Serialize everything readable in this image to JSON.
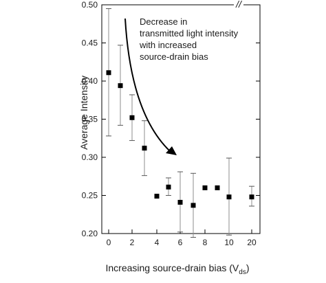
{
  "chart_data": {
    "type": "scatter",
    "xlabel_main": "Increasing source-drain bias (V",
    "xlabel_sub": "ds",
    "xlabel_close": ")",
    "ylabel": "Average Intensity",
    "ylim": [
      0.2,
      0.5
    ],
    "yticks": [
      "0.20",
      "0.25",
      "0.30",
      "0.35",
      "0.40",
      "0.45",
      "0.50"
    ],
    "xticks": [
      "0",
      "2",
      "4",
      "6",
      "8",
      "10",
      "20"
    ],
    "axis_break": "//",
    "grid": false,
    "annotation": {
      "lines": [
        "Decrease in",
        "transmitted light intensity",
        "with increased",
        "source-drain bias"
      ]
    },
    "points": [
      {
        "x": 0,
        "y": 0.411,
        "err_low": 0.328,
        "err_high": 0.495
      },
      {
        "x": 1,
        "y": 0.394,
        "err_low": 0.342,
        "err_high": 0.447
      },
      {
        "x": 2,
        "y": 0.352,
        "err_low": 0.322,
        "err_high": 0.382
      },
      {
        "x": 3,
        "y": 0.312,
        "err_low": 0.276,
        "err_high": 0.348
      },
      {
        "x": 4,
        "y": 0.249,
        "err_low": null,
        "err_high": null
      },
      {
        "x": 5,
        "y": 0.261,
        "err_low": 0.25,
        "err_high": 0.273
      },
      {
        "x": 6,
        "y": 0.241,
        "err_low": 0.202,
        "err_high": 0.281
      },
      {
        "x": 7,
        "y": 0.237,
        "err_low": 0.195,
        "err_high": 0.279
      },
      {
        "x": 8,
        "y": 0.26,
        "err_low": null,
        "err_high": null
      },
      {
        "x": 9,
        "y": 0.26,
        "err_low": null,
        "err_high": null
      },
      {
        "x": 10,
        "y": 0.248,
        "err_low": 0.198,
        "err_high": 0.299
      },
      {
        "x": 20,
        "y": 0.248,
        "err_low": 0.236,
        "err_high": 0.262
      }
    ]
  }
}
